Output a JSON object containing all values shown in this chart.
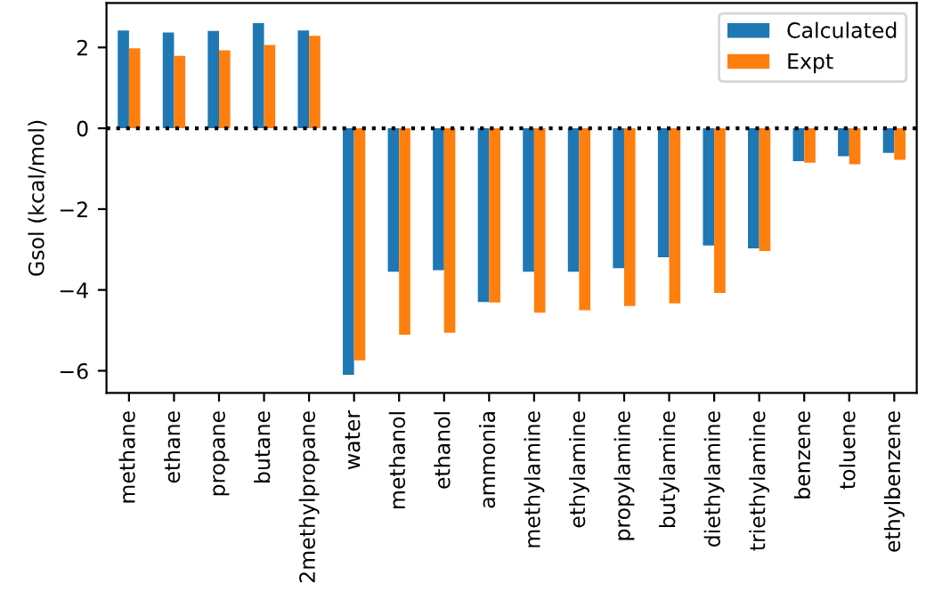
{
  "chart_data": {
    "type": "bar",
    "ylabel": "Gsol (kcal/mol)",
    "categories": [
      "methane",
      "ethane",
      "propane",
      "butane",
      "2methylpropane",
      "water",
      "methanol",
      "ethanol",
      "ammonia",
      "methylamine",
      "ethylamine",
      "propylamine",
      "butylamine",
      "diethylamine",
      "triethylamine",
      "benzene",
      "toluene",
      "ethylbenzene"
    ],
    "series": [
      {
        "name": "Calculated",
        "color": "#1f77b4",
        "values": [
          2.42,
          2.37,
          2.41,
          2.6,
          2.42,
          -6.1,
          -3.55,
          -3.51,
          -4.3,
          -3.55,
          -3.55,
          -3.46,
          -3.19,
          -2.9,
          -2.97,
          -0.81,
          -0.69,
          -0.61
        ]
      },
      {
        "name": "Expt",
        "color": "#ff7f0e",
        "values": [
          1.98,
          1.79,
          1.93,
          2.06,
          2.29,
          -5.74,
          -5.11,
          -5.06,
          -4.31,
          -4.56,
          -4.5,
          -4.4,
          -4.33,
          -4.07,
          -3.04,
          -0.85,
          -0.89,
          -0.78
        ]
      }
    ],
    "ylim": [
      -6.55,
      3.1
    ],
    "yticks": [
      {
        "value": -6,
        "label": "−6"
      },
      {
        "value": -4,
        "label": "−4"
      },
      {
        "value": -2,
        "label": "−2"
      },
      0,
      2
    ],
    "ref_lines": [
      {
        "axis": "y",
        "value": 0,
        "color": "#000000",
        "line_style": "dotted"
      }
    ],
    "legend": "top right",
    "grid": false
  }
}
